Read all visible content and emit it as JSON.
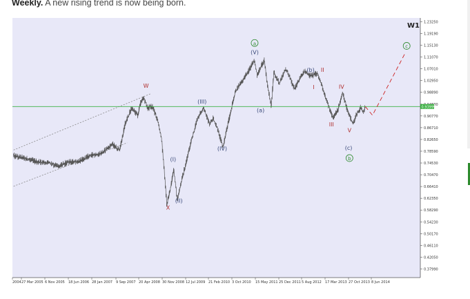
{
  "caption": {
    "bold": "Weekly.",
    "text": " A new rising trend is now being born."
  },
  "colors": {
    "background": "#e8e8f8",
    "price_line": "#555555",
    "horizontal_level": "#3cb043",
    "projection": "#cc2222",
    "wave_red": "#b03030",
    "wave_blue": "#3a4a7a",
    "wave_green": "#2d8a2d",
    "channel": "#888888"
  },
  "chart_data": {
    "type": "line",
    "timeframe_label": "W1",
    "ylim": [
      0.35,
      1.2455
    ],
    "y_ticks": [
      "1.23250",
      "1.19190",
      "1.15130",
      "1.11070",
      "1.07010",
      "1.02950",
      "0.98890",
      "0.94830",
      "0.90770",
      "0.86710",
      "0.82650",
      "0.78590",
      "0.74530",
      "0.70470",
      "0.66410",
      "0.62350",
      "0.58290",
      "0.54230",
      "0.50170",
      "0.46110",
      "0.42050",
      "0.37990"
    ],
    "x_ticks": [
      "2004",
      "27 Mar 2005",
      "6 Nov 2005",
      "18 Jun 2006",
      "28 Jan 2007",
      "9 Sep 2007",
      "20 Apr 2008",
      "30 Nov 2008",
      "12 Jul 2009",
      "21 Feb 2010",
      "3 Oct 2010",
      "15 May 2011",
      "25 Dec 2011",
      "5 Aug 2012",
      "17 Mar 2013",
      "27 Oct 2013",
      "8 Jun 2014"
    ],
    "current_price": 0.93999,
    "current_price_label": "0.93999",
    "horizontal_level": 0.94,
    "price_path": [
      [
        "2004-08-01",
        0.77
      ],
      [
        "2004-12-01",
        0.76
      ],
      [
        "2005-03-27",
        0.75
      ],
      [
        "2005-08-01",
        0.745
      ],
      [
        "2005-11-06",
        0.733
      ],
      [
        "2006-02-01",
        0.747
      ],
      [
        "2006-06-18",
        0.753
      ],
      [
        "2006-09-01",
        0.768
      ],
      [
        "2006-12-01",
        0.776
      ],
      [
        "2007-01-28",
        0.782
      ],
      [
        "2007-05-01",
        0.81
      ],
      [
        "2007-07-15",
        0.79
      ],
      [
        "2007-09-09",
        0.88
      ],
      [
        "2007-11-15",
        0.935
      ],
      [
        "2008-01-15",
        0.91
      ],
      [
        "2008-02-20",
        0.96
      ],
      [
        "2008-03-20",
        0.97
      ],
      [
        "2008-04-20",
        0.935
      ],
      [
        "2008-06-15",
        0.94
      ],
      [
        "2008-08-15",
        0.88
      ],
      [
        "2008-09-15",
        0.82
      ],
      [
        "2008-10-15",
        0.7
      ],
      [
        "2008-11-05",
        0.6
      ],
      [
        "2008-12-15",
        0.66
      ],
      [
        "2009-01-15",
        0.72
      ],
      [
        "2009-02-20",
        0.62
      ],
      [
        "2009-03-20",
        0.66
      ],
      [
        "2009-05-01",
        0.72
      ],
      [
        "2009-07-12",
        0.82
      ],
      [
        "2009-09-15",
        0.9
      ],
      [
        "2009-11-15",
        0.935
      ],
      [
        "2010-01-15",
        0.88
      ],
      [
        "2010-02-21",
        0.9
      ],
      [
        "2010-04-01",
        0.87
      ],
      [
        "2010-06-01",
        0.8
      ],
      [
        "2010-07-15",
        0.87
      ],
      [
        "2010-10-03",
        0.99
      ],
      [
        "2010-12-15",
        1.03
      ],
      [
        "2011-02-15",
        1.06
      ],
      [
        "2011-04-15",
        1.1
      ],
      [
        "2011-05-15",
        1.05
      ],
      [
        "2011-07-27",
        1.1
      ],
      [
        "2011-08-20",
        1.03
      ],
      [
        "2011-10-04",
        0.94
      ],
      [
        "2011-11-01",
        1.06
      ],
      [
        "2011-12-25",
        1.02
      ],
      [
        "2012-03-01",
        1.07
      ],
      [
        "2012-06-01",
        1.0
      ],
      [
        "2012-08-05",
        1.05
      ],
      [
        "2012-09-15",
        1.06
      ],
      [
        "2012-11-15",
        1.045
      ],
      [
        "2013-01-15",
        1.055
      ],
      [
        "2013-03-17",
        1.0
      ],
      [
        "2013-05-01",
        0.95
      ],
      [
        "2013-06-25",
        0.9
      ],
      [
        "2013-08-15",
        0.93
      ],
      [
        "2013-09-30",
        0.99
      ],
      [
        "2013-11-15",
        0.93
      ],
      [
        "2014-01-15",
        0.88
      ],
      [
        "2014-02-15",
        0.91
      ],
      [
        "2014-04-01",
        0.935
      ],
      [
        "2014-05-01",
        0.92
      ],
      [
        "2014-05-20",
        0.94
      ]
    ],
    "projection": [
      [
        "2014-05-20",
        0.94
      ],
      [
        "2014-08-01",
        0.91
      ],
      [
        "2015-07-01",
        1.125
      ]
    ],
    "channel_lines": [
      [
        [
          "2004-08-01",
          0.79
        ],
        [
          "2008-06-01",
          0.985
        ]
      ],
      [
        [
          "2004-08-01",
          0.665
        ],
        [
          "2007-10-01",
          0.815
        ]
      ]
    ],
    "wave_labels": [
      {
        "text": "W",
        "x": "2008-04-10",
        "y": 1.005,
        "color": "red"
      },
      {
        "text": "X",
        "x": "2008-11-20",
        "y": 0.585,
        "color": "red"
      },
      {
        "text": "(I)",
        "x": "2009-01-10",
        "y": 0.751,
        "color": "blue"
      },
      {
        "text": "(II)",
        "x": "2009-03-10",
        "y": 0.609,
        "color": "blue"
      },
      {
        "text": "(III)",
        "x": "2009-11-01",
        "y": 0.95,
        "color": "blue"
      },
      {
        "text": "(IV)",
        "x": "2010-05-25",
        "y": 0.788,
        "color": "blue"
      },
      {
        "text": "(V)",
        "x": "2011-04-20",
        "y": 1.12,
        "color": "blue"
      },
      {
        "text": "(a)",
        "x": "2011-06-20",
        "y": 0.921,
        "color": "blue"
      },
      {
        "text": "(b)",
        "x": "2012-11-10",
        "y": 1.06,
        "color": "blue"
      },
      {
        "text": "(c)",
        "x": "2013-12-01",
        "y": 0.791,
        "color": "blue"
      },
      {
        "text": "I",
        "x": "2012-12-10",
        "y": 1.0,
        "color": "red"
      },
      {
        "text": "II",
        "x": "2013-03-10",
        "y": 1.06,
        "color": "red"
      },
      {
        "text": "III",
        "x": "2013-06-10",
        "y": 0.871,
        "color": "red"
      },
      {
        "text": "IV",
        "x": "2013-09-20",
        "y": 1.001,
        "color": "red"
      },
      {
        "text": "V",
        "x": "2013-12-10",
        "y": 0.851,
        "color": "red"
      },
      {
        "text": "a",
        "x": "2011-04-20",
        "y": 1.152,
        "color": "green",
        "circled": true
      },
      {
        "text": "b",
        "x": "2013-12-10",
        "y": 0.755,
        "color": "green",
        "circled": true
      },
      {
        "text": "c",
        "x": "2015-07-15",
        "y": 1.142,
        "color": "green",
        "circled": true
      }
    ]
  }
}
